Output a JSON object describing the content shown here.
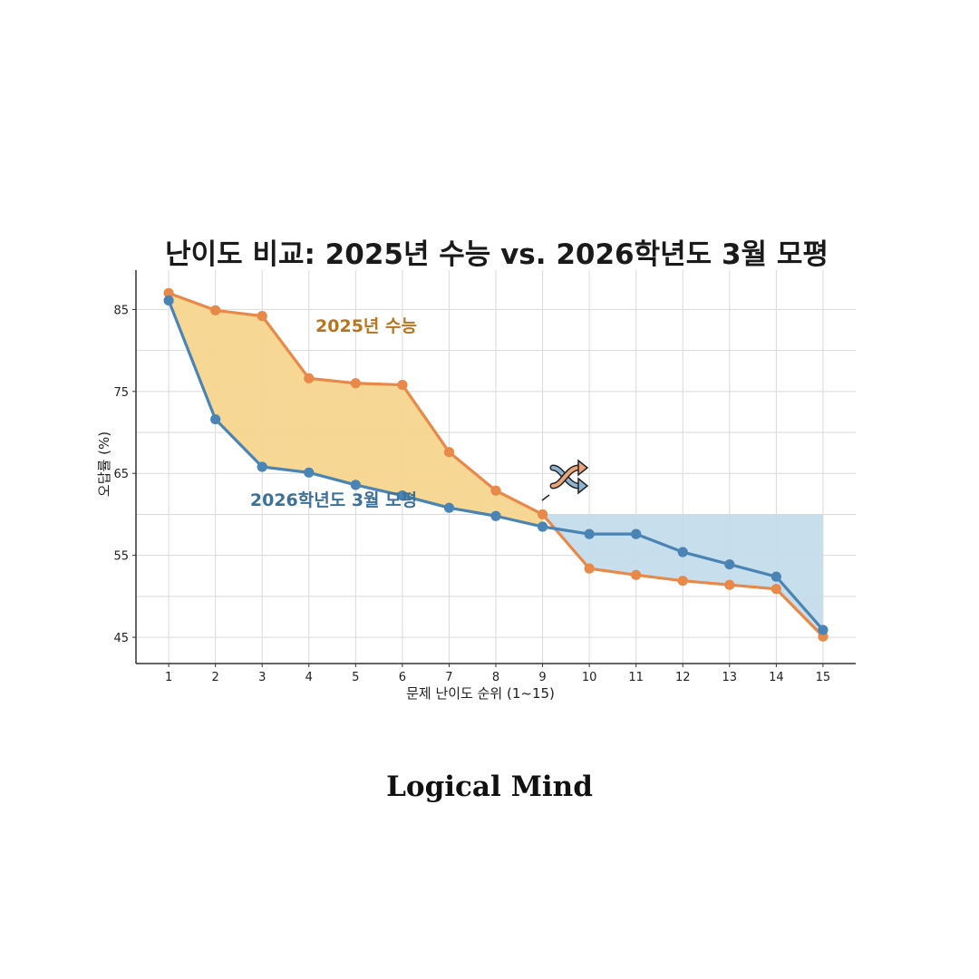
{
  "chart_data": {
    "type": "line",
    "title": "난이도 비교: 2025년 수능 vs. 2026학년도 3월 모평",
    "xlabel": "문제 난이도 순위 (1~15)",
    "ylabel": "오답률 (%)",
    "x": [
      1,
      2,
      3,
      4,
      5,
      6,
      7,
      8,
      9,
      10,
      11,
      12,
      13,
      14,
      15
    ],
    "yticks": [
      45,
      55,
      65,
      75,
      85
    ],
    "ylim": [
      41.8,
      89.8
    ],
    "xlim": [
      0.3,
      15.7
    ],
    "grid": true,
    "series": [
      {
        "name": "2025년 수능",
        "color": "#E8894A",
        "fill": "#F7D58E",
        "values": [
          87.0,
          84.9,
          84.2,
          76.6,
          76.0,
          75.8,
          67.6,
          62.9,
          60.0,
          53.4,
          52.6,
          51.9,
          51.4,
          50.9,
          45.1
        ]
      },
      {
        "name": "2026학년도 3월 모평",
        "color": "#4A84B4",
        "fill": "#C4DCEC",
        "values": [
          86.1,
          71.6,
          65.8,
          65.1,
          63.6,
          62.3,
          60.8,
          59.8,
          58.5,
          57.6,
          57.6,
          55.4,
          53.9,
          52.4,
          45.9
        ]
      }
    ],
    "crossover_icon": "shuffle-icon"
  },
  "footer": {
    "brand": "Logical Mind"
  }
}
